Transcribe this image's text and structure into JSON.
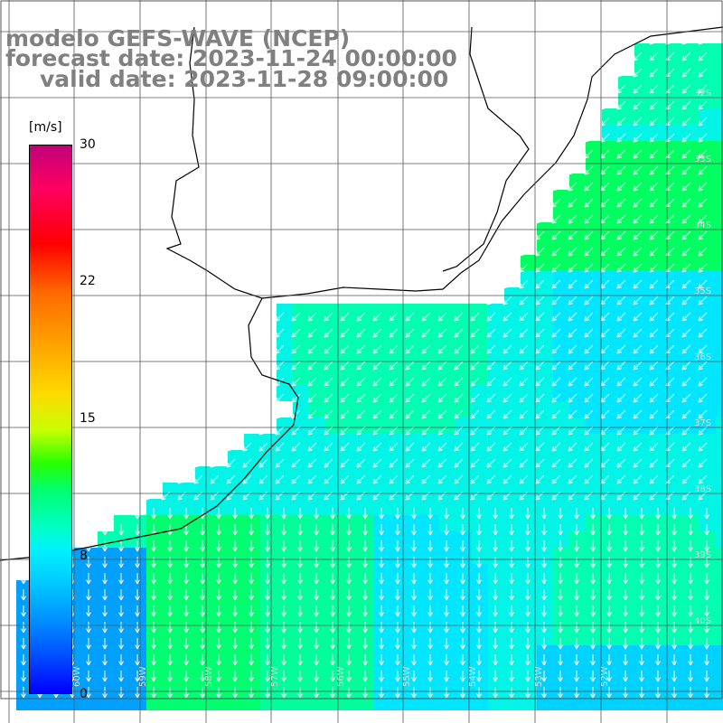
{
  "title": {
    "line1": "modelo GEFS-WAVE (NCEP)",
    "line2": "forecast date: 2023-11-24 00:00:00",
    "line3": "valid date: 2023-11-28 09:00:00"
  },
  "colorbar": {
    "unit": "[m/s]",
    "ticks": [
      "30",
      "22",
      "15",
      "8",
      "0"
    ],
    "range": [
      0,
      30
    ]
  },
  "map": {
    "lat_labels": [
      "32S",
      "33S",
      "34S",
      "35S",
      "36S",
      "37S",
      "38S",
      "39S",
      "40S"
    ],
    "lon_labels": [
      "60W",
      "59W",
      "58W",
      "57W",
      "56W",
      "55W",
      "54W",
      "53W",
      "52W"
    ],
    "colors": {
      "land": "#ffffff",
      "coast": "#000000",
      "grid": "#555555",
      "arrow": "#ffffff",
      "title": "#808080"
    },
    "field_description_none": ""
  }
}
